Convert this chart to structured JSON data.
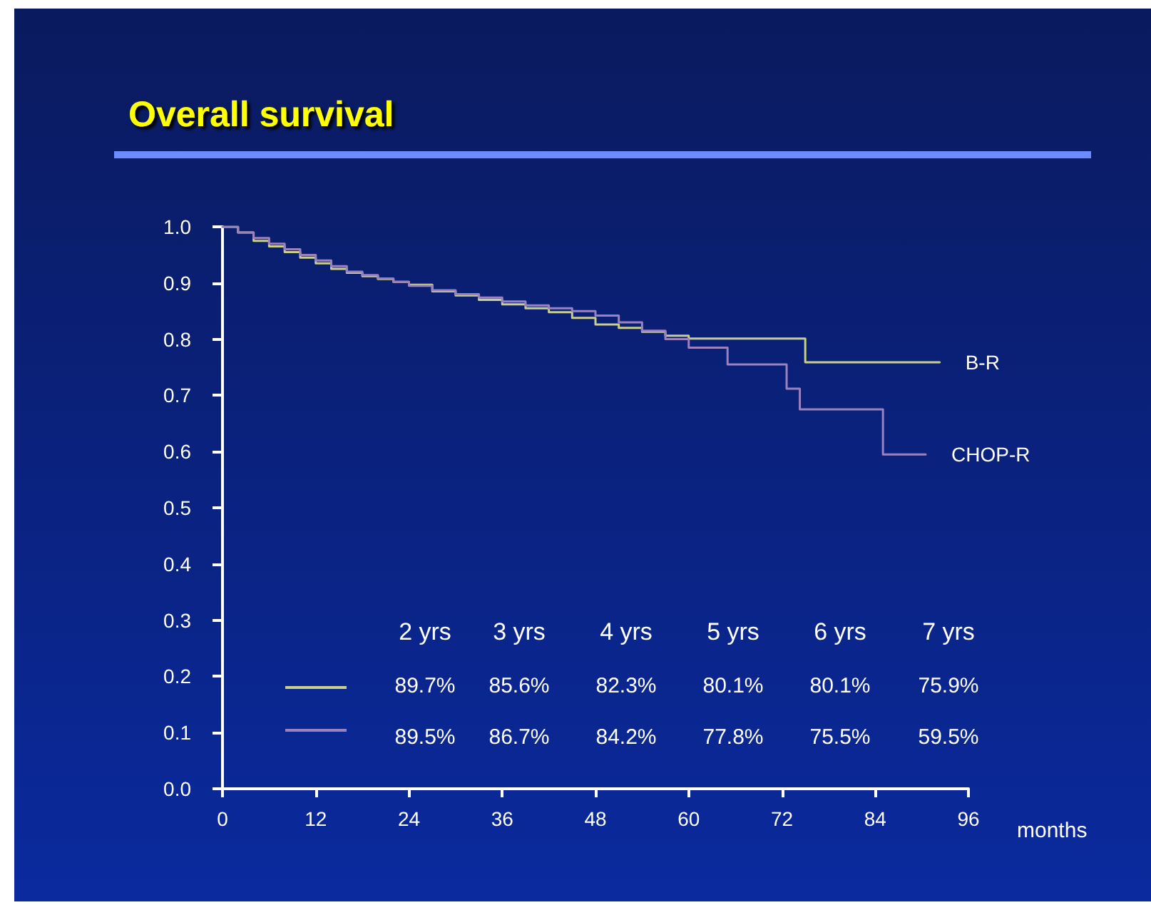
{
  "chart_data": {
    "type": "step",
    "title": "Overall survival",
    "xlabel": "months",
    "xlim": [
      0,
      96
    ],
    "xticks": [
      0,
      12,
      24,
      36,
      48,
      60,
      72,
      84,
      96
    ],
    "ylim": [
      0,
      1
    ],
    "yticks": [
      {
        "value": 0,
        "label": "0.0"
      },
      0.1,
      0.2,
      0.3,
      0.4,
      0.5,
      0.6,
      0.7,
      0.8,
      0.9,
      {
        "value": 1,
        "label": "1.0"
      }
    ],
    "grid": false,
    "legend": false,
    "marker": "none",
    "line_style": "solid",
    "series": [
      {
        "name": "B-R",
        "color": "#c8cf8e",
        "x": [
          0,
          2,
          4,
          6,
          8,
          10,
          12,
          14,
          16,
          18,
          20,
          22,
          24,
          27,
          30,
          33,
          36,
          39,
          42,
          45,
          48,
          51,
          54,
          57,
          60,
          75,
          92.3
        ],
        "values": [
          1.0,
          0.99,
          0.975,
          0.965,
          0.955,
          0.945,
          0.935,
          0.925,
          0.918,
          0.912,
          0.907,
          0.902,
          0.897,
          0.885,
          0.878,
          0.87,
          0.862,
          0.855,
          0.848,
          0.838,
          0.826,
          0.82,
          0.813,
          0.806,
          0.801,
          0.759,
          0.759
        ]
      },
      {
        "name": "CHOP-R",
        "color": "#9a82c0",
        "x": [
          0,
          2,
          4,
          6,
          8,
          10,
          12,
          14,
          16,
          18,
          20,
          22,
          24,
          27,
          30,
          33,
          36,
          39,
          42,
          45,
          48,
          51,
          54,
          57,
          60,
          65,
          72.6,
          74.3,
          85,
          90.5
        ],
        "values": [
          1.0,
          0.99,
          0.98,
          0.97,
          0.96,
          0.95,
          0.94,
          0.93,
          0.92,
          0.914,
          0.908,
          0.902,
          0.895,
          0.887,
          0.88,
          0.874,
          0.867,
          0.86,
          0.855,
          0.85,
          0.842,
          0.83,
          0.815,
          0.8,
          0.785,
          0.755,
          0.712,
          0.675,
          0.595,
          0.595
        ]
      }
    ],
    "annotations": [
      "2 yrs",
      "3 yrs",
      "4 yrs",
      "5 yrs",
      "6 yrs",
      "7 yrs",
      "89.7%",
      "85.6%",
      "82.3%",
      "80.1%",
      "80.1%",
      "75.9%",
      "89.5%",
      "86.7%",
      "84.2%",
      "77.8%",
      "75.5%",
      "59.5%"
    ]
  }
}
